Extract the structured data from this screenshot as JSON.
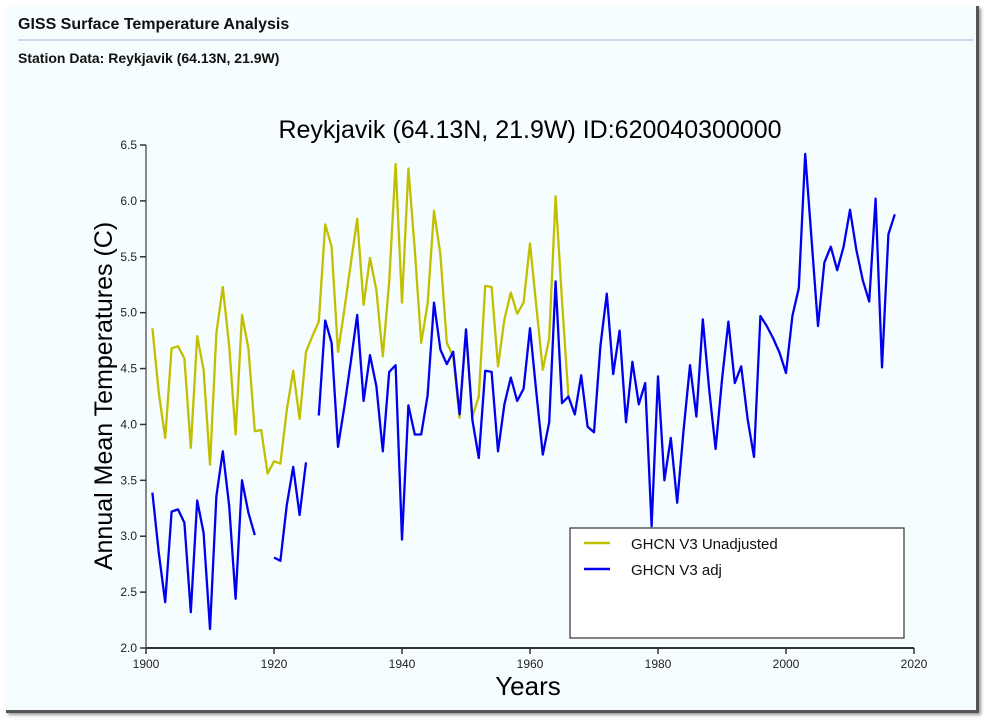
{
  "header": {
    "title": "GISS Surface Temperature Analysis",
    "subtitle": "Station Data: Reykjavik (64.13N, 21.9W)"
  },
  "chart_data": {
    "type": "line",
    "title": "Reykjavik (64.13N, 21.9W) ID:620040300000",
    "xlabel": "Years",
    "ylabel": "Annual Mean Temperatures (C)",
    "xlim": [
      1900,
      2020
    ],
    "ylim": [
      2.0,
      6.5
    ],
    "xticks": [
      "1900",
      "1920",
      "1940",
      "1960",
      "1980",
      "2000",
      "2020"
    ],
    "yticks": [
      "2.0",
      "2.5",
      "3.0",
      "3.5",
      "4.0",
      "4.5",
      "5.0",
      "5.5",
      "6.0",
      "6.5"
    ],
    "grid": false,
    "legend_position": "bottom-right",
    "x_start": 1901,
    "series": [
      {
        "name": "GHCN V3 Unadjusted",
        "color": "#c0c000",
        "values": [
          4.86,
          4.28,
          3.88,
          4.68,
          4.7,
          4.59,
          3.79,
          4.79,
          4.49,
          3.64,
          4.82,
          5.23,
          4.7,
          3.91,
          4.98,
          4.68,
          3.94,
          3.95,
          3.56,
          3.67,
          3.65,
          4.13,
          4.48,
          4.05,
          4.65,
          4.79,
          4.92,
          5.79,
          5.59,
          4.65,
          5.03,
          5.44,
          5.84,
          5.07,
          5.49,
          5.2,
          4.61,
          5.28,
          6.33,
          5.09,
          6.29,
          5.56,
          4.73,
          5.08,
          5.91,
          5.52,
          4.73,
          4.61,
          4.06,
          4.84,
          4.07,
          4.25,
          5.24,
          5.23,
          4.52,
          4.94,
          5.18,
          4.99,
          5.09,
          5.62,
          5.05,
          4.49,
          4.77,
          6.04,
          5.11,
          4.25
        ]
      },
      {
        "name": "GHCN V3 adj",
        "color": "#0000ee",
        "values": [
          3.39,
          2.85,
          2.41,
          3.22,
          3.24,
          3.12,
          2.32,
          3.32,
          3.03,
          2.17,
          3.36,
          3.76,
          3.27,
          2.44,
          3.5,
          3.21,
          3.01,
          null,
          null,
          2.81,
          2.78,
          3.28,
          3.62,
          3.19,
          3.66,
          null,
          4.08,
          4.93,
          4.73,
          3.8,
          4.16,
          4.56,
          4.98,
          4.21,
          4.62,
          4.34,
          3.76,
          4.47,
          4.53,
          2.97,
          4.17,
          3.91,
          3.91,
          4.26,
          5.09,
          4.67,
          4.54,
          4.65,
          4.09,
          4.85,
          4.04,
          3.7,
          4.48,
          4.47,
          3.76,
          4.18,
          4.42,
          4.21,
          4.32,
          4.86,
          4.28,
          3.73,
          4.02,
          5.28,
          4.19,
          4.25,
          4.09,
          4.44,
          3.98,
          3.93,
          4.7,
          5.17,
          4.45,
          4.84,
          4.02,
          4.56,
          4.18,
          4.37,
          3.09,
          4.43,
          3.5,
          3.88,
          3.3,
          3.95,
          4.53,
          4.07,
          4.94,
          4.31,
          3.78,
          4.4,
          4.92,
          4.37,
          4.52,
          4.05,
          3.71,
          4.97,
          4.88,
          4.77,
          4.64,
          4.46,
          4.97,
          5.22,
          6.42,
          5.65,
          4.88,
          5.45,
          5.59,
          5.38,
          5.59,
          5.92,
          5.56,
          5.29,
          5.1,
          6.02,
          4.51,
          5.7,
          5.88
        ]
      }
    ]
  }
}
